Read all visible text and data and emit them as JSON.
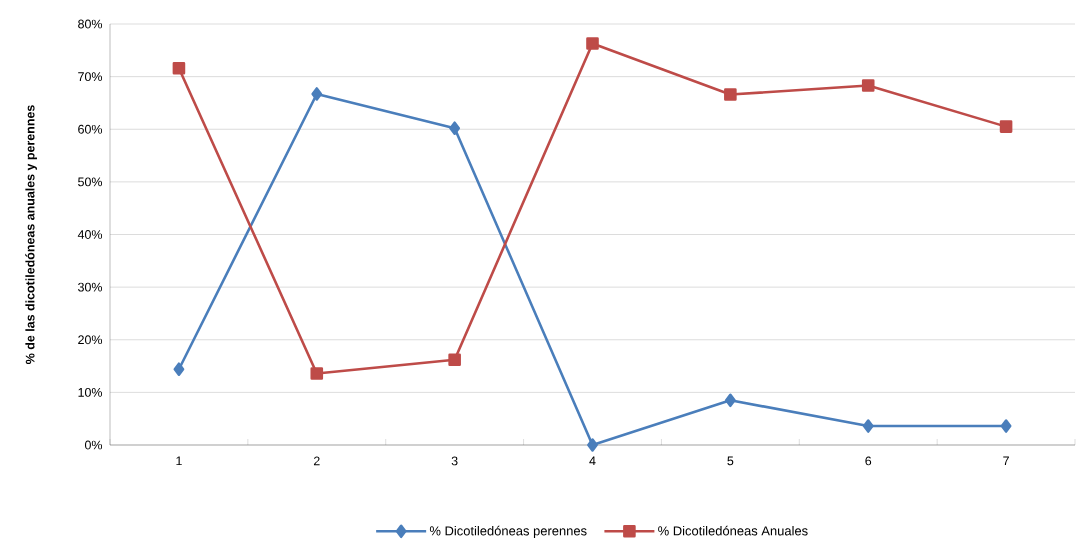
{
  "chart_data": {
    "type": "line",
    "ylabel": "% de las dicotiledóneas anuales y perennes",
    "categories": [
      "1",
      "2",
      "3",
      "4",
      "5",
      "6",
      "7"
    ],
    "series": [
      {
        "name": "% Dicotiledóneas perennes",
        "color": "#4a7ebb",
        "marker": "diamond",
        "values": [
          14.4,
          66.7,
          60.2,
          0,
          8.5,
          3.6,
          3.6
        ]
      },
      {
        "name": "% Dicotiledóneas Anuales",
        "color": "#be4b48",
        "marker": "square",
        "values": [
          71.6,
          13.6,
          16.2,
          76.3,
          66.6,
          68.3,
          60.5
        ]
      }
    ],
    "ylim": [
      0,
      80
    ],
    "yticks": [
      {
        "value": 0,
        "label": "0%"
      },
      {
        "value": 10,
        "label": "10%"
      },
      {
        "value": 20,
        "label": "20%"
      },
      {
        "value": 30,
        "label": "30%"
      },
      {
        "value": 40,
        "label": "40%"
      },
      {
        "value": 50,
        "label": "50%"
      },
      {
        "value": 60,
        "label": "60%"
      },
      {
        "value": 70,
        "label": "70%"
      },
      {
        "value": 80,
        "label": "80%"
      }
    ],
    "grid": "y",
    "legend": "bottom",
    "line_style": "solid"
  }
}
